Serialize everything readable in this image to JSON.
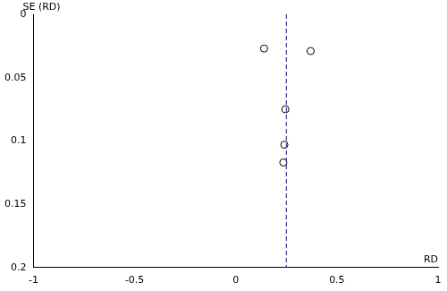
{
  "chart_data": {
    "type": "scatter",
    "x_label": "RD",
    "y_label": "SE (RD)",
    "x": [
      0.14,
      0.37,
      0.245,
      0.24,
      0.235
    ],
    "values": [
      0.027,
      0.029,
      0.075,
      0.103,
      0.117
    ],
    "color": "#000000",
    "marker": "hollow_circle",
    "pooled_estimate": 0.25,
    "pooled_estimate_color": "#3b3b9a",
    "line_style": "dashed",
    "xlim": [
      -1,
      1
    ],
    "xticks": [
      -1,
      -0.5,
      0,
      0.5,
      1
    ],
    "ylim": [
      0,
      0.2
    ],
    "yticks": [
      0,
      0.05,
      0.1,
      0.15,
      0.2
    ],
    "grid": false
  }
}
